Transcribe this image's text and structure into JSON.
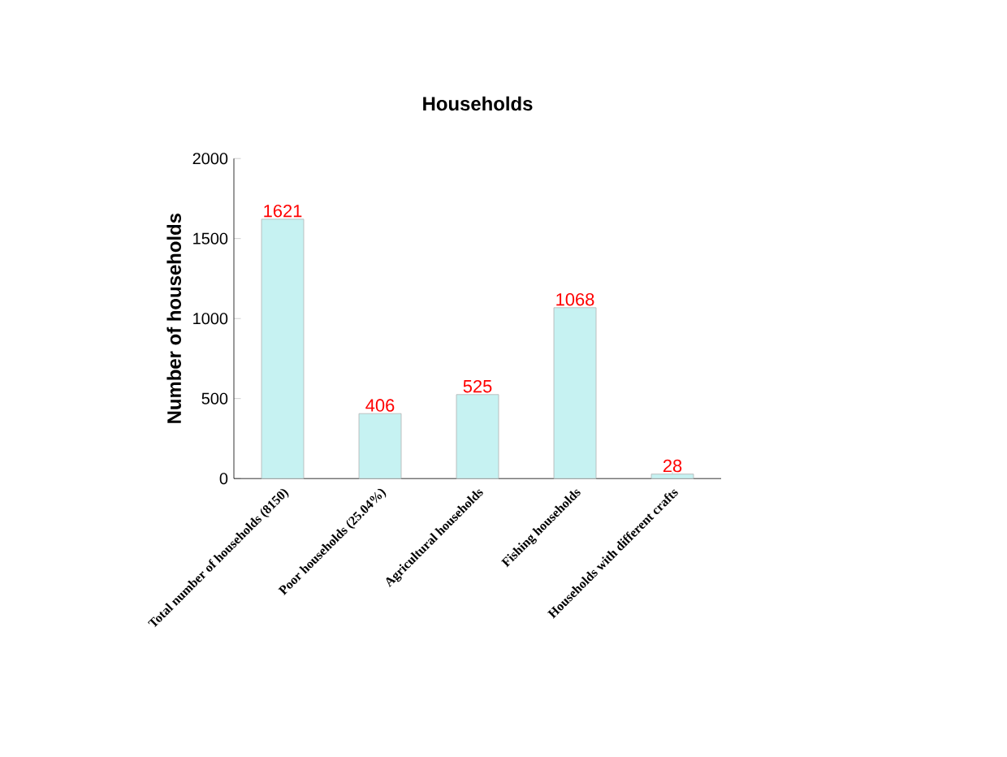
{
  "chart_data": {
    "type": "bar",
    "title": "Households",
    "ylabel": "Number of households",
    "categories": [
      "Total number of households (8150)",
      "Poor households (25.04%)",
      "Agricultural households",
      "Fishing households",
      "Households with different crafts"
    ],
    "values": [
      1621,
      406,
      525,
      1068,
      28
    ],
    "color": "#c6f2f2",
    "ylim": [
      0,
      2000
    ],
    "yticks": [
      0,
      500,
      1000,
      1500,
      2000
    ],
    "data_labels": true
  }
}
